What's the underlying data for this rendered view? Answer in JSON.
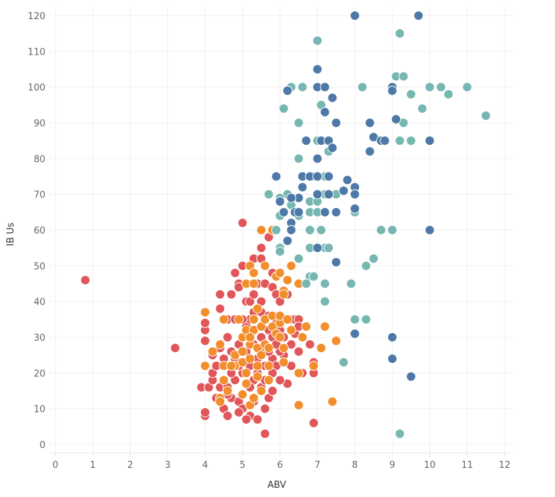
{
  "chart_data": {
    "type": "scatter",
    "title": "",
    "xlabel": "ABV",
    "ylabel": "IB Us",
    "xlim": [
      0,
      12
    ],
    "ylim": [
      0,
      120
    ],
    "x_ticks": [
      "0",
      "1",
      "2",
      "3",
      "4",
      "5",
      "6",
      "7",
      "8",
      "9",
      "10",
      "11",
      "12"
    ],
    "y_ticks": [
      "0",
      "10",
      "20",
      "30",
      "40",
      "50",
      "60",
      "70",
      "80",
      "90",
      "100",
      "110",
      "120"
    ],
    "grid": true,
    "series": [
      {
        "color": "#e15759",
        "points": [
          [
            0.8,
            46
          ],
          [
            3.2,
            27
          ],
          [
            5,
            62
          ],
          [
            5.6,
            3
          ],
          [
            6.9,
            6
          ],
          [
            4,
            8
          ],
          [
            4,
            9
          ],
          [
            3.9,
            16
          ],
          [
            4.1,
            16
          ],
          [
            4,
            29
          ],
          [
            4,
            32
          ],
          [
            4,
            34
          ],
          [
            4.2,
            18
          ],
          [
            4.2,
            20
          ],
          [
            4.3,
            22
          ],
          [
            4.4,
            42
          ],
          [
            4.4,
            38
          ],
          [
            4.5,
            35
          ],
          [
            4.4,
            16
          ],
          [
            4.3,
            13
          ],
          [
            4.4,
            12
          ],
          [
            4.5,
            10
          ],
          [
            4.6,
            8
          ],
          [
            4.7,
            42
          ],
          [
            4.8,
            48
          ],
          [
            4.9,
            45
          ],
          [
            4.9,
            44
          ],
          [
            5,
            50
          ],
          [
            5.1,
            40
          ],
          [
            5.2,
            40
          ],
          [
            5.3,
            52
          ],
          [
            5.5,
            52
          ],
          [
            5.7,
            58
          ],
          [
            5.5,
            55
          ],
          [
            5.8,
            48
          ],
          [
            5.4,
            45
          ],
          [
            5.6,
            45
          ],
          [
            5.8,
            44
          ],
          [
            5.9,
            42
          ],
          [
            6,
            40
          ],
          [
            6.1,
            35
          ],
          [
            6.2,
            35
          ],
          [
            6.3,
            35
          ],
          [
            6.4,
            35
          ],
          [
            6.5,
            35
          ],
          [
            6.2,
            42
          ],
          [
            6.4,
            31
          ],
          [
            6.1,
            25
          ],
          [
            6,
            26
          ],
          [
            6.2,
            17
          ],
          [
            6,
            18
          ],
          [
            6.6,
            20
          ],
          [
            6.8,
            28
          ],
          [
            6.9,
            20
          ],
          [
            6.9,
            23
          ],
          [
            4.6,
            30
          ],
          [
            4.7,
            26
          ],
          [
            4.8,
            24
          ],
          [
            4.9,
            28
          ],
          [
            5,
            30
          ],
          [
            5.1,
            33
          ],
          [
            5.2,
            35
          ],
          [
            5.3,
            37
          ],
          [
            5.5,
            37
          ],
          [
            5.6,
            35
          ],
          [
            5.7,
            32
          ],
          [
            5.8,
            30
          ],
          [
            5.9,
            28
          ],
          [
            5.5,
            27
          ],
          [
            5.4,
            24
          ],
          [
            5.2,
            22
          ],
          [
            5,
            20
          ],
          [
            4.8,
            18
          ],
          [
            4.6,
            16
          ],
          [
            4.7,
            13
          ],
          [
            4.9,
            12
          ],
          [
            5,
            10
          ],
          [
            5.2,
            8
          ],
          [
            5.4,
            7
          ],
          [
            5.1,
            7
          ],
          [
            5,
            14
          ],
          [
            5.3,
            12
          ],
          [
            5.5,
            16
          ],
          [
            5.6,
            18
          ],
          [
            5.7,
            13
          ],
          [
            5.8,
            15
          ],
          [
            5.6,
            10
          ],
          [
            5.3,
            18
          ],
          [
            5.4,
            20
          ],
          [
            5.6,
            22
          ],
          [
            5.8,
            24
          ],
          [
            5.7,
            26
          ],
          [
            5.5,
            30
          ],
          [
            5.3,
            28
          ],
          [
            5.1,
            26
          ],
          [
            4.9,
            22
          ],
          [
            4.7,
            20
          ],
          [
            4.5,
            24
          ],
          [
            4.4,
            27
          ],
          [
            4.2,
            25
          ],
          [
            5.9,
            35
          ],
          [
            6,
            32
          ],
          [
            5.9,
            22
          ],
          [
            5.8,
            20
          ],
          [
            4.6,
            35
          ],
          [
            4.8,
            35
          ],
          [
            5,
            35
          ],
          [
            5.3,
            42
          ],
          [
            5.5,
            40
          ],
          [
            5.7,
            36
          ],
          [
            6.1,
            30
          ],
          [
            6.3,
            28
          ],
          [
            6.5,
            26
          ],
          [
            6.3,
            22
          ],
          [
            6.5,
            33
          ],
          [
            5.2,
            16
          ],
          [
            4.9,
            9
          ],
          [
            4.6,
            14
          ]
        ]
      },
      {
        "color": "#f28e2b",
        "points": [
          [
            5.5,
            60
          ],
          [
            5.8,
            60
          ],
          [
            5.2,
            50
          ],
          [
            5.6,
            50
          ],
          [
            6.3,
            50
          ],
          [
            5.3,
            48
          ],
          [
            5.1,
            45
          ],
          [
            5.3,
            45
          ],
          [
            5.9,
            47
          ],
          [
            6,
            48
          ],
          [
            6.5,
            45
          ],
          [
            6.1,
            43
          ],
          [
            6.1,
            42
          ],
          [
            4,
            37
          ],
          [
            4,
            22
          ],
          [
            7.2,
            33
          ],
          [
            7.5,
            29
          ],
          [
            7.4,
            12
          ],
          [
            6.5,
            11
          ],
          [
            6.5,
            20
          ],
          [
            6.9,
            22
          ],
          [
            7.1,
            27
          ],
          [
            6.7,
            33
          ],
          [
            6.6,
            30
          ],
          [
            4.2,
            26
          ],
          [
            4.4,
            28
          ],
          [
            4.5,
            35
          ],
          [
            4.5,
            22
          ],
          [
            4.5,
            18
          ],
          [
            4.6,
            15
          ],
          [
            4.4,
            13
          ],
          [
            4.4,
            12
          ],
          [
            4.8,
            25
          ],
          [
            4.8,
            22
          ],
          [
            4.9,
            35
          ],
          [
            5,
            30
          ],
          [
            5,
            26
          ],
          [
            5,
            23
          ],
          [
            5.1,
            20
          ],
          [
            5.1,
            17
          ],
          [
            5.1,
            32
          ],
          [
            5.2,
            28
          ],
          [
            5.2,
            24
          ],
          [
            5.2,
            11
          ],
          [
            5.3,
            35
          ],
          [
            5.3,
            32
          ],
          [
            5.4,
            27
          ],
          [
            5.4,
            22
          ],
          [
            5.4,
            19
          ],
          [
            5.5,
            33
          ],
          [
            5.5,
            25
          ],
          [
            5.5,
            15
          ],
          [
            5.6,
            35
          ],
          [
            5.6,
            28
          ],
          [
            5.7,
            27
          ],
          [
            5.7,
            22
          ],
          [
            5.7,
            18
          ],
          [
            5.8,
            36
          ],
          [
            5.8,
            33
          ],
          [
            5.9,
            31
          ],
          [
            6,
            30
          ],
          [
            6,
            34
          ],
          [
            6,
            36
          ],
          [
            6.1,
            27
          ],
          [
            6.1,
            23
          ],
          [
            6.2,
            35
          ],
          [
            6.3,
            32
          ],
          [
            5,
            14
          ],
          [
            5.3,
            13
          ],
          [
            4.7,
            22
          ],
          [
            5.2,
            30
          ],
          [
            5.4,
            38
          ],
          [
            6.2,
            46
          ]
        ]
      },
      {
        "color": "#76b7b2",
        "points": [
          [
            7,
            113
          ],
          [
            9.2,
            115
          ],
          [
            6.3,
            100
          ],
          [
            6.6,
            100
          ],
          [
            8.2,
            100
          ],
          [
            9.1,
            103
          ],
          [
            9.3,
            103
          ],
          [
            10,
            100
          ],
          [
            10.3,
            100
          ],
          [
            11,
            100
          ],
          [
            9.5,
            98
          ],
          [
            10.5,
            98
          ],
          [
            7.1,
            95
          ],
          [
            9.8,
            94
          ],
          [
            6.1,
            94
          ],
          [
            11.5,
            92
          ],
          [
            6.5,
            90
          ],
          [
            9.3,
            90
          ],
          [
            7,
            85
          ],
          [
            7.1,
            85
          ],
          [
            9.2,
            85
          ],
          [
            9.5,
            85
          ],
          [
            7.3,
            82
          ],
          [
            6.5,
            80
          ],
          [
            7.2,
            75
          ],
          [
            6.9,
            75
          ],
          [
            5.7,
            70
          ],
          [
            6.2,
            70
          ],
          [
            7.2,
            70
          ],
          [
            7.5,
            70
          ],
          [
            6,
            69
          ],
          [
            6.8,
            68
          ],
          [
            7,
            68
          ],
          [
            6.3,
            67
          ],
          [
            6.1,
            65
          ],
          [
            6.8,
            65
          ],
          [
            7,
            65
          ],
          [
            8,
            65
          ],
          [
            6,
            64
          ],
          [
            6.5,
            64
          ],
          [
            5.9,
            60
          ],
          [
            6.8,
            60
          ],
          [
            7.1,
            60
          ],
          [
            8.7,
            60
          ],
          [
            9,
            60
          ],
          [
            6,
            55
          ],
          [
            6,
            54
          ],
          [
            6.8,
            55
          ],
          [
            7.2,
            55
          ],
          [
            7.3,
            55
          ],
          [
            6.5,
            52
          ],
          [
            8.5,
            52
          ],
          [
            8.3,
            50
          ],
          [
            6.8,
            47
          ],
          [
            6.9,
            47
          ],
          [
            6.7,
            45
          ],
          [
            7.2,
            45
          ],
          [
            7.9,
            45
          ],
          [
            7.2,
            40
          ],
          [
            8,
            35
          ],
          [
            8.3,
            35
          ],
          [
            7.7,
            23
          ],
          [
            9.2,
            3
          ]
        ]
      },
      {
        "color": "#4e79a7",
        "points": [
          [
            8,
            120
          ],
          [
            9.7,
            120
          ],
          [
            7,
            105
          ],
          [
            6.2,
            99
          ],
          [
            7,
            100
          ],
          [
            7.2,
            100
          ],
          [
            9,
            100
          ],
          [
            9,
            99
          ],
          [
            7.4,
            97
          ],
          [
            7.2,
            93
          ],
          [
            7.5,
            90
          ],
          [
            8.4,
            90
          ],
          [
            9.1,
            91
          ],
          [
            8.5,
            86
          ],
          [
            8.7,
            85
          ],
          [
            8.8,
            85
          ],
          [
            10,
            85
          ],
          [
            6.7,
            85
          ],
          [
            7.1,
            85
          ],
          [
            7.3,
            85
          ],
          [
            8.4,
            82
          ],
          [
            7.4,
            83
          ],
          [
            7,
            80
          ],
          [
            5.9,
            75
          ],
          [
            6.6,
            75
          ],
          [
            6.8,
            75
          ],
          [
            7,
            75
          ],
          [
            7.3,
            75
          ],
          [
            7.8,
            74
          ],
          [
            6.6,
            72
          ],
          [
            8,
            72
          ],
          [
            7.7,
            71
          ],
          [
            8,
            70
          ],
          [
            7,
            70
          ],
          [
            7.3,
            70
          ],
          [
            6.5,
            69
          ],
          [
            6.3,
            69
          ],
          [
            6,
            68
          ],
          [
            6.1,
            65
          ],
          [
            6.4,
            65
          ],
          [
            6.5,
            65
          ],
          [
            7.2,
            65
          ],
          [
            7.5,
            65
          ],
          [
            8,
            66
          ],
          [
            6.3,
            62
          ],
          [
            6.3,
            60
          ],
          [
            6.2,
            57
          ],
          [
            10,
            60
          ],
          [
            7,
            55
          ],
          [
            7.5,
            51
          ],
          [
            8,
            31
          ],
          [
            9,
            30
          ],
          [
            9,
            24
          ],
          [
            9.5,
            19
          ]
        ]
      }
    ]
  }
}
